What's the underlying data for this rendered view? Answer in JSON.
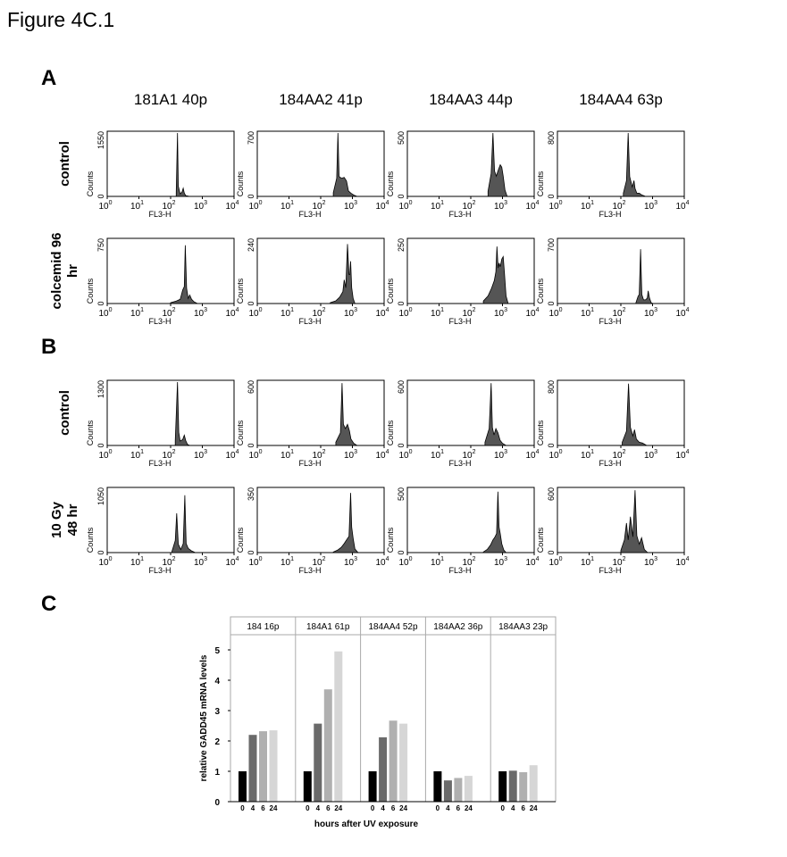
{
  "figure_title": "Figure 4C.1",
  "chart_data": [
    {
      "type": "area",
      "panel": "A",
      "columns": [
        "181A1 40p",
        "184AA2 41p",
        "184AA3 44p",
        "184AA4 63p"
      ],
      "rows": [
        "control",
        "colcemid 96 hr"
      ],
      "xlabel": "FL3-H",
      "ylabel": "Counts",
      "x_scale": "log",
      "xlim": [
        1,
        10000
      ],
      "x_ticks": [
        "10",
        "10",
        "10",
        "10",
        "10"
      ],
      "x_tick_exponents": [
        "0",
        "1",
        "2",
        "3",
        "4"
      ],
      "series": [
        {
          "row": "control",
          "column": "181A1 40p",
          "ymax": 1550,
          "x": [
            150,
            165,
            175,
            200,
            230,
            250,
            270,
            300,
            400
          ],
          "y": [
            120,
            1550,
            250,
            60,
            110,
            200,
            80,
            20,
            0
          ]
        },
        {
          "row": "control",
          "column": "184AA2 41p",
          "ymax": 700,
          "x": [
            250,
            320,
            350,
            380,
            450,
            550,
            650,
            750,
            900,
            1100,
            1400
          ],
          "y": [
            40,
            200,
            700,
            220,
            200,
            210,
            170,
            60,
            35,
            15,
            0
          ]
        },
        {
          "row": "control",
          "column": "184AA3 44p",
          "ymax": 500,
          "x": [
            350,
            440,
            500,
            560,
            640,
            720,
            850,
            950,
            1050,
            1200,
            1400
          ],
          "y": [
            40,
            180,
            500,
            200,
            160,
            200,
            250,
            230,
            160,
            50,
            0
          ]
        },
        {
          "row": "control",
          "column": "184AA4 63p",
          "ymax": 800,
          "x": [
            120,
            150,
            170,
            190,
            230,
            260,
            280,
            320,
            380,
            450,
            600
          ],
          "y": [
            40,
            200,
            800,
            250,
            120,
            200,
            100,
            40,
            40,
            20,
            0
          ]
        },
        {
          "row": "colcemid 96 hr",
          "column": "181A1 40p",
          "ymax": 750,
          "x": [
            100,
            150,
            200,
            240,
            270,
            290,
            320,
            360,
            400,
            460,
            550,
            700
          ],
          "y": [
            10,
            30,
            50,
            160,
            200,
            690,
            180,
            60,
            100,
            50,
            20,
            0
          ]
        },
        {
          "row": "colcemid 96 hr",
          "column": "184AA2 41p",
          "ymax": 240,
          "x": [
            200,
            300,
            400,
            500,
            550,
            620,
            700,
            780,
            830,
            880,
            950,
            1050,
            1200
          ],
          "y": [
            3,
            10,
            25,
            45,
            90,
            60,
            225,
            110,
            110,
            160,
            60,
            20,
            0
          ]
        },
        {
          "row": "colcemid 96 hr",
          "column": "184AA3 44p",
          "ymax": 250,
          "x": [
            250,
            350,
            450,
            550,
            620,
            670,
            730,
            780,
            850,
            950,
            1050,
            1150,
            1300,
            1500
          ],
          "y": [
            10,
            30,
            60,
            90,
            125,
            225,
            140,
            160,
            145,
            175,
            185,
            120,
            30,
            0
          ]
        },
        {
          "row": "colcemid 96 hr",
          "column": "184AA4 63p",
          "ymax": 700,
          "x": [
            300,
            350,
            380,
            420,
            460,
            520,
            600,
            680,
            730,
            800,
            900,
            1000
          ],
          "y": [
            10,
            80,
            100,
            600,
            100,
            40,
            40,
            60,
            140,
            60,
            10,
            0
          ]
        }
      ]
    },
    {
      "type": "area",
      "panel": "B",
      "columns": [
        "181A1 40p",
        "184AA2 41p",
        "184AA3 44p",
        "184AA4 63p"
      ],
      "rows": [
        "control",
        "10 Gy 48 hr"
      ],
      "xlabel": "FL3-H",
      "ylabel": "Counts",
      "x_scale": "log",
      "xlim": [
        1,
        10000
      ],
      "x_ticks": [
        "10",
        "10",
        "10",
        "10",
        "10"
      ],
      "x_tick_exponents": [
        "0",
        "1",
        "2",
        "3",
        "4"
      ],
      "series": [
        {
          "row": "control",
          "column": "181A1 40p",
          "ymax": 1300,
          "x": [
            140,
            165,
            180,
            200,
            240,
            270,
            300,
            340,
            400
          ],
          "y": [
            100,
            1300,
            270,
            90,
            120,
            210,
            100,
            20,
            0
          ]
        },
        {
          "row": "control",
          "column": "184AA2 41p",
          "ymax": 600,
          "x": [
            300,
            420,
            470,
            520,
            600,
            700,
            800,
            900,
            1100,
            1400
          ],
          "y": [
            30,
            120,
            590,
            200,
            160,
            200,
            140,
            60,
            20,
            0
          ]
        },
        {
          "row": "control",
          "column": "184AA3 44p",
          "ymax": 600,
          "x": [
            280,
            380,
            440,
            480,
            540,
            620,
            720,
            840,
            1000,
            1300
          ],
          "y": [
            30,
            160,
            590,
            170,
            100,
            160,
            120,
            50,
            20,
            0
          ]
        },
        {
          "row": "control",
          "column": "184AA4 63p",
          "ymax": 800,
          "x": [
            110,
            150,
            175,
            200,
            240,
            270,
            310,
            380,
            480,
            650
          ],
          "y": [
            40,
            180,
            780,
            230,
            120,
            200,
            80,
            40,
            30,
            0
          ]
        },
        {
          "row": "10 Gy 48 hr",
          "column": "181A1 40p",
          "ymax": 1050,
          "x": [
            110,
            140,
            155,
            175,
            210,
            250,
            280,
            310,
            360,
            450,
            600
          ],
          "y": [
            20,
            200,
            650,
            140,
            50,
            150,
            950,
            150,
            70,
            30,
            0
          ]
        },
        {
          "row": "10 Gy 48 hr",
          "column": "184AA2 41p",
          "ymax": 350,
          "x": [
            250,
            350,
            450,
            550,
            650,
            780,
            880,
            950,
            1050,
            1200,
            1500
          ],
          "y": [
            3,
            15,
            30,
            50,
            70,
            90,
            330,
            140,
            80,
            20,
            0
          ]
        },
        {
          "row": "10 Gy 48 hr",
          "column": "184AA3 44p",
          "ymax": 500,
          "x": [
            250,
            330,
            420,
            500,
            570,
            650,
            720,
            780,
            850,
            950,
            1100,
            1300
          ],
          "y": [
            5,
            25,
            60,
            100,
            120,
            150,
            480,
            200,
            150,
            70,
            20,
            0
          ]
        },
        {
          "row": "10 Gy 48 hr",
          "column": "184AA4 63p",
          "ymax": 600,
          "x": [
            100,
            130,
            150,
            170,
            200,
            240,
            280,
            320,
            380,
            450,
            550,
            700
          ],
          "y": [
            20,
            120,
            280,
            120,
            340,
            150,
            590,
            160,
            80,
            140,
            30,
            0
          ]
        }
      ]
    },
    {
      "type": "bar",
      "panel": "C",
      "groups": [
        "184 16p",
        "184A1 61p",
        "184AA4 52p",
        "184AA2 36p",
        "184AA3 23p"
      ],
      "categories": [
        "0",
        "4",
        "6",
        "24"
      ],
      "ylabel": "relative GADD45 mRNA levels",
      "xlabel": "hours after UV exposure",
      "ylim": [
        0,
        5.5
      ],
      "y_ticks": [
        "0",
        "1",
        "2",
        "3",
        "4",
        "5"
      ],
      "series": [
        {
          "group": "184 16p",
          "values": [
            1.0,
            2.2,
            2.32,
            2.35
          ]
        },
        {
          "group": "184A1 61p",
          "values": [
            1.0,
            2.57,
            3.7,
            4.95
          ]
        },
        {
          "group": "184AA4 52p",
          "values": [
            1.0,
            2.12,
            2.67,
            2.57
          ]
        },
        {
          "group": "184AA2 36p",
          "values": [
            1.0,
            0.7,
            0.78,
            0.85
          ]
        },
        {
          "group": "184AA3 23p",
          "values": [
            1.0,
            1.02,
            0.97,
            1.2
          ]
        }
      ],
      "bar_colors": [
        "#000000",
        "#6a6a6a",
        "#b0b0b0",
        "#d6d6d6"
      ]
    }
  ]
}
